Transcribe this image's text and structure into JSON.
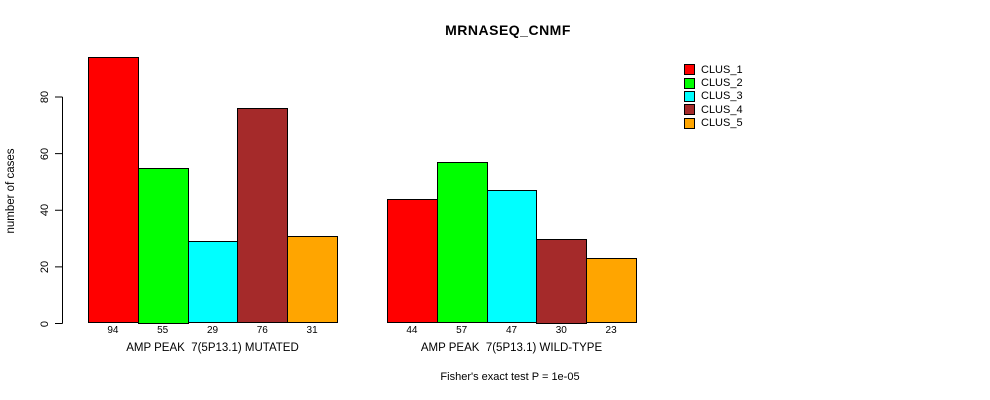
{
  "chart_data": {
    "type": "bar",
    "title": "MRNASEQ_CNMF",
    "ylabel": "number of cases",
    "xlabel": "",
    "ylim": [
      0,
      94
    ],
    "yticks": [
      0,
      20,
      40,
      60,
      80
    ],
    "grid": false,
    "legend_position": "top-right-outside",
    "bar_value_labels_shown": true,
    "categories": [
      "AMP PEAK  7(5P13.1) MUTATED",
      "AMP PEAK  7(5P13.1) WILD-TYPE"
    ],
    "series": [
      {
        "name": "CLUS_1",
        "color": "#ff0000",
        "values": [
          94,
          44
        ]
      },
      {
        "name": "CLUS_2",
        "color": "#00ff00",
        "values": [
          55,
          57
        ]
      },
      {
        "name": "CLUS_3",
        "color": "#00ffff",
        "values": [
          29,
          47
        ]
      },
      {
        "name": "CLUS_4",
        "color": "#a52a2a",
        "values": [
          76,
          30
        ]
      },
      {
        "name": "CLUS_5",
        "color": "#ffa500",
        "values": [
          31,
          23
        ]
      }
    ],
    "annotation": "Fisher's exact test P = 1e-05",
    "axis_color": "#000000",
    "bar_border_color": "#000000"
  }
}
